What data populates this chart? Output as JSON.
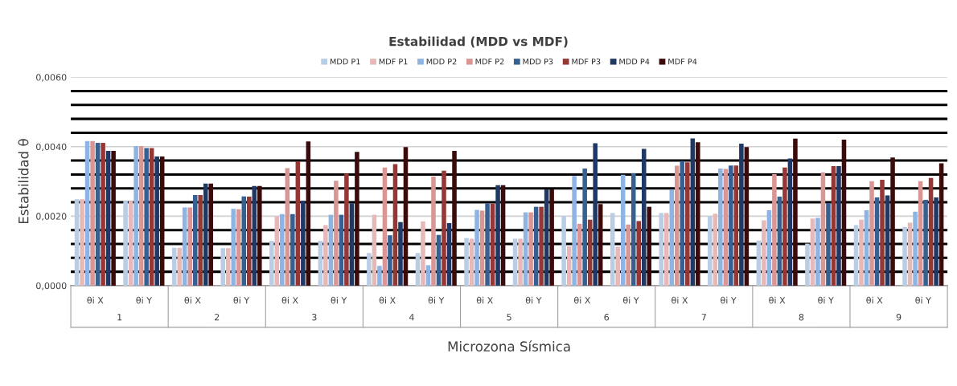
{
  "chart_data": {
    "type": "bar",
    "title": "Estabilidad (MDD vs MDF)",
    "ylabel": "Estabilidad θ",
    "xlabel": "Microzona Sísmica",
    "categories": [
      "θi X",
      "θi Y",
      "θi X",
      "θi Y",
      "θi X",
      "θi Y",
      "θi X",
      "θi Y",
      "θi X",
      "θi Y",
      "θi X",
      "θi Y",
      "θi X",
      "θi Y",
      "θi X",
      "θi Y",
      "θi X",
      "θi Y"
    ],
    "annotations": [
      "1",
      "2",
      "3",
      "4",
      "5",
      "6",
      "7",
      "8",
      "9"
    ],
    "series": [
      {
        "name": "MDD P1",
        "color": "#b9cde5",
        "values": [
          0.00249,
          0.00244,
          0.00109,
          0.00108,
          0.00129,
          0.00129,
          0.00094,
          0.00094,
          0.00137,
          0.00135,
          0.00201,
          0.00209,
          0.00209,
          0.002,
          0.0013,
          0.00121,
          0.00174,
          0.00169
        ]
      },
      {
        "name": "MDF P1",
        "color": "#e6b9b8",
        "values": [
          0.00249,
          0.00244,
          0.00109,
          0.00108,
          0.00199,
          0.00174,
          0.00204,
          0.00185,
          0.00135,
          0.00135,
          0.00113,
          0.00112,
          0.00209,
          0.00207,
          0.00188,
          0.00193,
          0.0019,
          0.00181
        ]
      },
      {
        "name": "MDD P2",
        "color": "#8eb4e3",
        "values": [
          0.00416,
          0.00402,
          0.00225,
          0.00221,
          0.00206,
          0.00204,
          0.00057,
          0.00059,
          0.00218,
          0.00211,
          0.00316,
          0.00319,
          0.00277,
          0.00337,
          0.00217,
          0.00195,
          0.00217,
          0.00213
        ]
      },
      {
        "name": "MDF P2",
        "color": "#d99694",
        "values": [
          0.00416,
          0.00402,
          0.00225,
          0.0022,
          0.00338,
          0.00302,
          0.0034,
          0.00314,
          0.00216,
          0.00211,
          0.00178,
          0.00176,
          0.00345,
          0.00336,
          0.00321,
          0.00326,
          0.00301,
          0.00301
        ]
      },
      {
        "name": "MDD P3",
        "color": "#376092",
        "values": [
          0.00411,
          0.00396,
          0.00261,
          0.00257,
          0.00206,
          0.00204,
          0.00145,
          0.00146,
          0.00237,
          0.00227,
          0.00337,
          0.00324,
          0.00359,
          0.00346,
          0.00256,
          0.00238,
          0.00254,
          0.00247
        ]
      },
      {
        "name": "MDF P3",
        "color": "#953735",
        "values": [
          0.00411,
          0.00396,
          0.00261,
          0.00256,
          0.00358,
          0.00322,
          0.0035,
          0.00331,
          0.00236,
          0.00227,
          0.0019,
          0.00186,
          0.00355,
          0.00346,
          0.0034,
          0.00344,
          0.00305,
          0.0031
        ]
      },
      {
        "name": "MDD P4",
        "color": "#1f3864",
        "values": [
          0.00388,
          0.00372,
          0.00294,
          0.00287,
          0.00244,
          0.00237,
          0.00183,
          0.0018,
          0.00289,
          0.00277,
          0.0041,
          0.00394,
          0.00424,
          0.00409,
          0.00366,
          0.00344,
          0.0026,
          0.00254
        ]
      },
      {
        "name": "MDF P4",
        "color": "#3b0b0b",
        "values": [
          0.00388,
          0.00372,
          0.00294,
          0.00287,
          0.00415,
          0.00385,
          0.00399,
          0.00388,
          0.00289,
          0.00277,
          0.00235,
          0.00227,
          0.00413,
          0.00399,
          0.00423,
          0.0042,
          0.00369,
          0.00352
        ]
      }
    ],
    "ylim": [
      0,
      0.006
    ],
    "yticks": [
      {
        "value": 0,
        "label": "0,0000"
      },
      {
        "value": 0.0004,
        "label": null
      },
      {
        "value": 0.0008,
        "label": null
      },
      {
        "value": 0.0012,
        "label": null
      },
      {
        "value": 0.0016,
        "label": null
      },
      {
        "value": 0.002,
        "label": "0,0020"
      },
      {
        "value": 0.0024,
        "label": null
      },
      {
        "value": 0.0028,
        "label": null
      },
      {
        "value": 0.0032,
        "label": null
      },
      {
        "value": 0.0036,
        "label": null
      },
      {
        "value": 0.004,
        "label": "0,0040"
      },
      {
        "value": 0.0044,
        "label": null
      },
      {
        "value": 0.0048,
        "label": null
      },
      {
        "value": 0.0052,
        "label": null
      },
      {
        "value": 0.0056,
        "label": null
      },
      {
        "value": 0.006,
        "label": "0,0060"
      }
    ],
    "grid": "y",
    "legend": "top"
  }
}
